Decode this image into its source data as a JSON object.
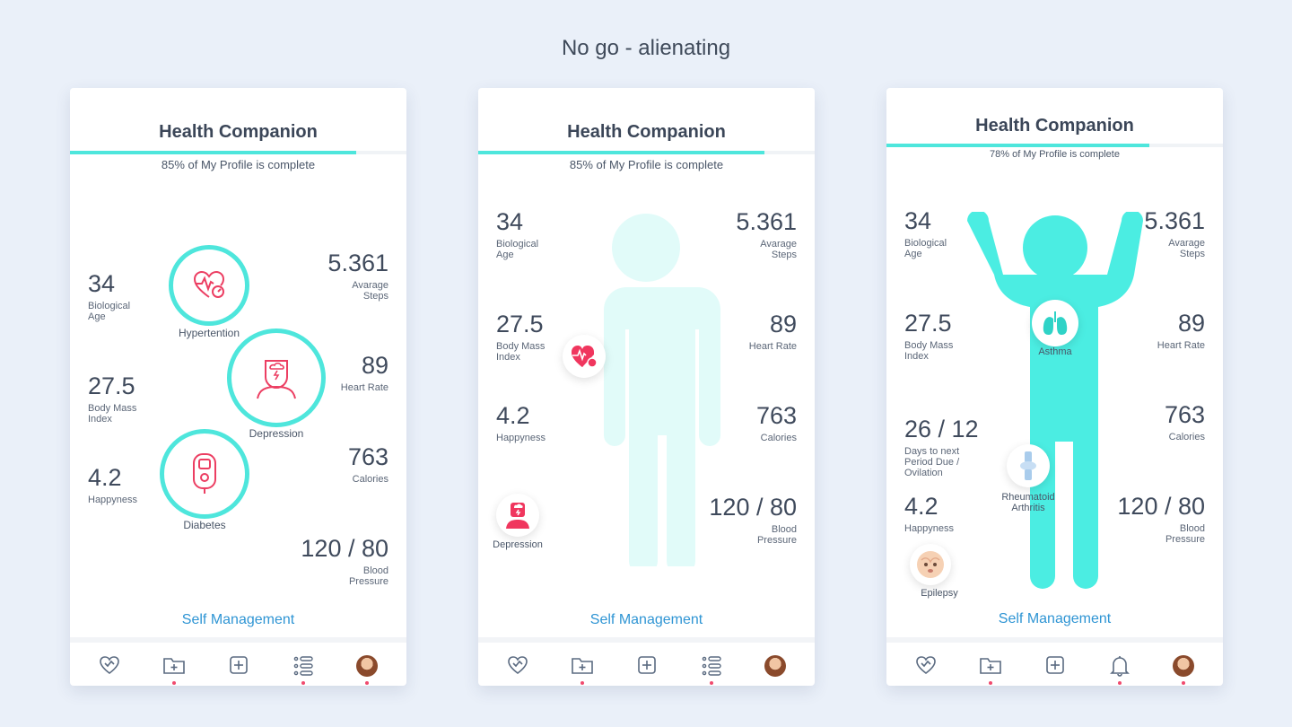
{
  "page": {
    "title": "No go - alienating"
  },
  "phones": [
    {
      "title": "Health Companion",
      "progress": {
        "percent": 85,
        "text": "85% of My Profile is complete"
      },
      "metrics": [
        {
          "value": "34",
          "label": "Biological Age"
        },
        {
          "value": "27.5",
          "label": "Body Mass Index"
        },
        {
          "value": "4.2",
          "label": "Happyness"
        },
        {
          "value": "5.361",
          "label": "Avarage Steps"
        },
        {
          "value": "89",
          "label": "Heart Rate"
        },
        {
          "value": "763",
          "label": "Calories"
        },
        {
          "value": "120 / 80",
          "label": "Blood Pressure"
        }
      ],
      "conditions": [
        {
          "label": "Hypertention",
          "icon": "heart-pressure-icon"
        },
        {
          "label": "Depression",
          "icon": "head-storm-icon"
        },
        {
          "label": "Diabetes",
          "icon": "glucose-meter-icon"
        }
      ],
      "self_management": "Self Management",
      "tabs": [
        "heart-icon",
        "folder-add-icon",
        "plus-square-icon",
        "list-icon",
        "avatar"
      ]
    },
    {
      "title": "Health Companion",
      "progress": {
        "percent": 85,
        "text": "85% of My Profile is complete"
      },
      "metrics": [
        {
          "value": "34",
          "label": "Biological Age"
        },
        {
          "value": "27.5",
          "label": "Body Mass Index"
        },
        {
          "value": "4.2",
          "label": "Happyness"
        },
        {
          "value": "5.361",
          "label": "Avarage Steps"
        },
        {
          "value": "89",
          "label": "Heart Rate"
        },
        {
          "value": "763",
          "label": "Calories"
        },
        {
          "value": "120 / 80",
          "label": "Blood Pressure"
        }
      ],
      "conditions": [
        {
          "label": "Depression",
          "icon": "head-storm-icon"
        }
      ],
      "self_management": "Self Management",
      "tabs": [
        "heart-icon",
        "folder-add-icon",
        "plus-square-icon",
        "list-icon",
        "avatar"
      ]
    },
    {
      "title": "Health Companion",
      "progress": {
        "percent": 78,
        "text": "78% of My Profile is complete"
      },
      "metrics": [
        {
          "value": "34",
          "label": "Biological Age"
        },
        {
          "value": "27.5",
          "label": "Body Mass Index"
        },
        {
          "value": "26 / 12",
          "label": "Days to next Period Due  / Ovilation"
        },
        {
          "value": "4.2",
          "label": "Happyness"
        },
        {
          "value": "5.361",
          "label": "Avarage Steps"
        },
        {
          "value": "89",
          "label": "Heart Rate"
        },
        {
          "value": "763",
          "label": "Calories"
        },
        {
          "value": "120 / 80",
          "label": "Blood Pressure"
        }
      ],
      "conditions": [
        {
          "label": "Asthma",
          "icon": "lungs-icon"
        },
        {
          "label": "Rheumatoid Arthritis",
          "icon": "joint-icon"
        },
        {
          "label": "Epilepsy",
          "icon": "face-icon"
        }
      ],
      "self_management": "Self Management",
      "tabs": [
        "heart-icon",
        "folder-add-icon",
        "plus-square-icon",
        "bell-icon",
        "avatar"
      ]
    }
  ],
  "colors": {
    "accent": "#4ee6dc",
    "alert": "#f04a6d",
    "link": "#2f95d4"
  }
}
